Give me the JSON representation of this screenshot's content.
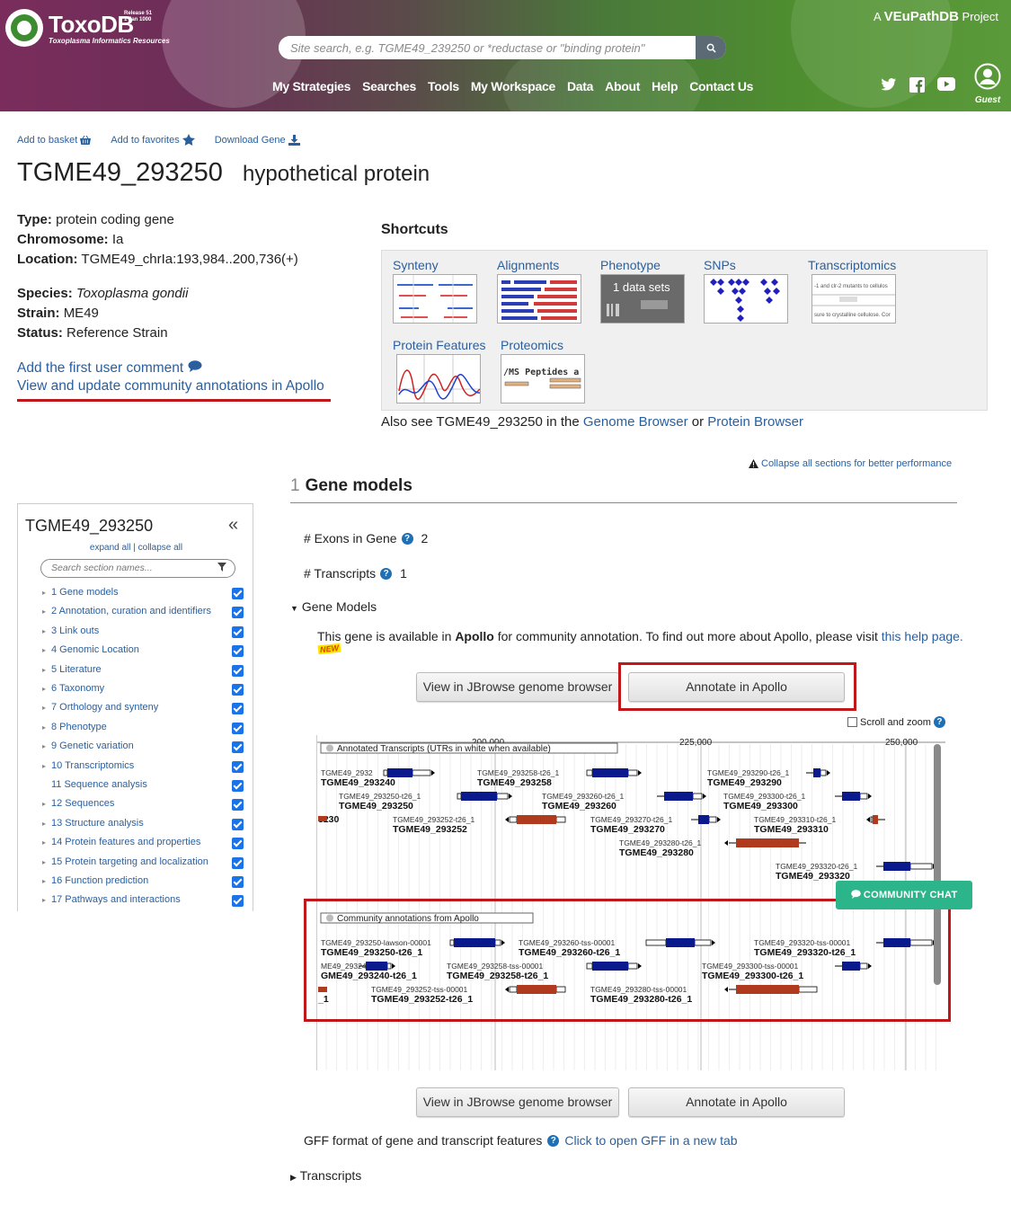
{
  "header": {
    "site_name": "ToxoDB",
    "site_tagline": "Toxoplasma Informatics Resources",
    "release_line1": "Release 51",
    "release_line2": "1 Jan 1000",
    "project_prefix": "A",
    "project_name": "VEuPathDB",
    "project_suffix": "Project",
    "search_placeholder": "Site search, e.g. TGME49_239250 or *reductase or \"binding protein\"",
    "nav": [
      "My Strategies",
      "Searches",
      "Tools",
      "My Workspace",
      "Data",
      "About",
      "Help",
      "Contact Us"
    ],
    "guest_label": "Guest"
  },
  "actions": {
    "basket": "Add to basket",
    "favorites": "Add to favorites",
    "download": "Download Gene"
  },
  "gene": {
    "id": "TGME49_293250",
    "product": "hypothetical protein"
  },
  "info": {
    "type_label": "Type:",
    "type_value": "protein coding gene",
    "chrom_label": "Chromosome:",
    "chrom_value": "Ia",
    "loc_label": "Location:",
    "loc_value": "TGME49_chrIa:193,984..200,736(+)",
    "species_label": "Species:",
    "species_value": "Toxoplasma gondii",
    "strain_label": "Strain:",
    "strain_value": "ME49",
    "status_label": "Status:",
    "status_value": "Reference Strain"
  },
  "comments": {
    "first_comment": "Add the first user comment",
    "apollo_link": "View and update community annotations in Apollo"
  },
  "shortcuts": {
    "title": "Shortcuts",
    "items": [
      "Synteny",
      "Alignments",
      "Phenotype",
      "SNPs",
      "Transcriptomics",
      "Protein Features",
      "Proteomics"
    ],
    "phenotype_overlay": "1 data sets",
    "transcriptomics_overlay_1": "-1 and clr-2 mutants to cellulos",
    "transcriptomics_overlay_2": "sure to crystalline cellulose. Cor",
    "proteomics_overlay": "/MS Peptides a",
    "also_prefix": "Also see TGME49_293250 in the",
    "genome_browser": "Genome Browser",
    "or": "or",
    "protein_browser": "Protein Browser"
  },
  "collapse_all": "Collapse all sections for better performance",
  "sidebar": {
    "title": "TGME49_293250",
    "expand_collapse": "expand all | collapse all",
    "search_placeholder": "Search section names...",
    "items": [
      "1 Gene models",
      "2 Annotation, curation and identifiers",
      "3 Link outs",
      "4 Genomic Location",
      "5 Literature",
      "6 Taxonomy",
      "7 Orthology and synteny",
      "8 Phenotype",
      "9 Genetic variation",
      "10 Transcriptomics",
      "11 Sequence analysis",
      "12 Sequences",
      "13 Structure analysis",
      "14 Protein features and properties",
      "15 Protein targeting and localization",
      "16 Function prediction",
      "17 Pathways and interactions"
    ]
  },
  "gene_models": {
    "num": "1",
    "title": "Gene models",
    "exons_label": "# Exons in Gene",
    "exons_value": "2",
    "transcripts_label": "# Transcripts",
    "transcripts_value": "1",
    "subsection": "Gene Models",
    "apollo_note_pre": "This gene is available in",
    "apollo_note_bold": "Apollo",
    "apollo_note_post": "for community annotation. To find out more about Apollo, please visit",
    "help_link": "this help page.",
    "new_badge": "NEW",
    "btn_jbrowse": "View in JBrowse genome browser",
    "btn_apollo": "Annotate in Apollo",
    "scroll_zoom": "Scroll and zoom",
    "gff_label": "GFF format of gene and transcript features",
    "gff_link": "Click to open GFF in a new tab",
    "transcripts_section": "Transcripts"
  },
  "track": {
    "ruler": [
      "200,000",
      "225,000",
      "250,000"
    ],
    "annotated_label": "Annotated Transcripts (UTRs in white when available)",
    "community_label": "Community annotations from Apollo",
    "chat": "COMMUNITY CHAT",
    "annotated": [
      {
        "t": "TGME49_2932",
        "g": "TGME49_293240"
      },
      {
        "t": "TGME49_293258-t26_1",
        "g": "TGME49_293258"
      },
      {
        "t": "TGME49_293290-t26_1",
        "g": "TGME49_293290"
      },
      {
        "t": "TGME49_293250-t26_1",
        "g": "TGME49_293250"
      },
      {
        "t": "TGME49_293260-t26_1",
        "g": "TGME49_293260"
      },
      {
        "t": "TGME49_293300-t26_1",
        "g": "TGME49_293300"
      },
      {
        "t": "",
        "g": "3230"
      },
      {
        "t": "TGME49_293252-t26_1",
        "g": "TGME49_293252"
      },
      {
        "t": "TGME49_293270-t26_1",
        "g": "TGME49_293270"
      },
      {
        "t": "TGME49_293310-t26_1",
        "g": "TGME49_293310"
      },
      {
        "t": "TGME49_293280-t26_1",
        "g": "TGME49_293280"
      },
      {
        "t": "TGME49_293320-t26_1",
        "g": "TGME49_293320"
      }
    ],
    "community": [
      {
        "t": "TGME49_293250-lawson-00001",
        "g": "TGME49_293250-t26_1"
      },
      {
        "t": "TGME49_293260-tss-00001",
        "g": "TGME49_293260-t26_1"
      },
      {
        "t": "TGME49_293320-tss-00001",
        "g": "TGME49_293320-t26_1"
      },
      {
        "t": "ME49_293240-t",
        "g": "GME49_293240-t26_1"
      },
      {
        "t": "TGME49_293258-tss-00001",
        "g": "TGME49_293258-t26_1"
      },
      {
        "t": "TGME49_293300-tss-00001",
        "g": "TGME49_293300-t26_1"
      },
      {
        "t": "",
        "g": "_1"
      },
      {
        "t": "TGME49_293252-tss-00001",
        "g": "TGME49_293252-t26_1"
      },
      {
        "t": "TGME49_293280-tss-00001",
        "g": "TGME49_293280-t26_1"
      }
    ]
  },
  "colors": {
    "link": "#2a5f9e",
    "highlight_red": "#c0171b",
    "feature_blue": "#0a1a8c",
    "feature_red": "#b03a1e",
    "chat_green": "#2cb58a"
  }
}
